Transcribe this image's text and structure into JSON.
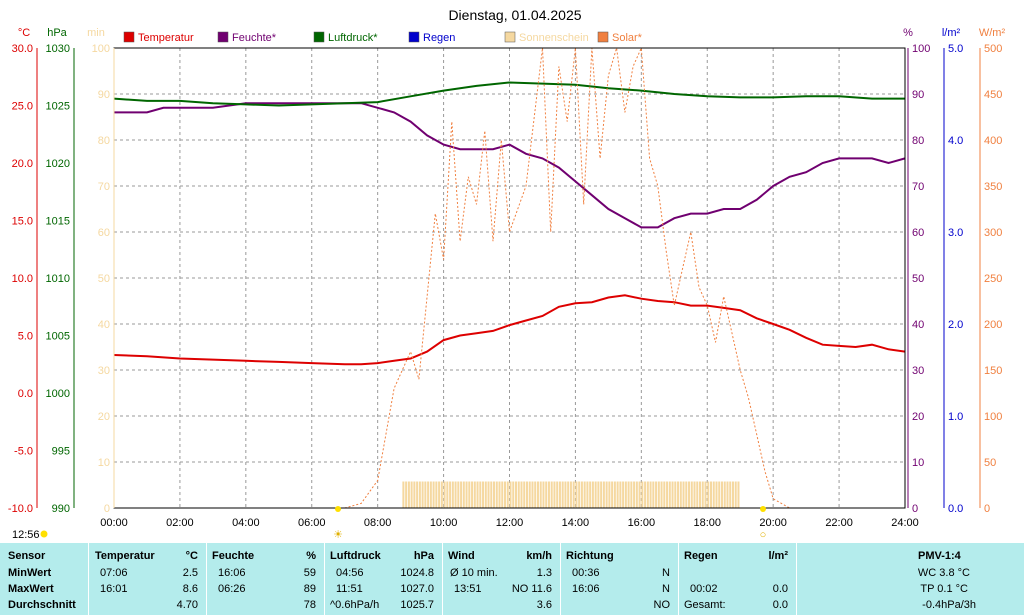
{
  "title": "Dienstag, 01.04.2025",
  "current_time": "12:56",
  "colors": {
    "temperature": "#dd0000",
    "humidity": "#700070",
    "pressure": "#006600",
    "rain": "#0000cc",
    "sunshine": "#f5d8a0",
    "solar": "#f08040",
    "grid": "#999999",
    "panel": "#b4ecec"
  },
  "chart_data": {
    "type": "line",
    "x_range": [
      "00:00",
      "24:00"
    ],
    "x_ticks": [
      "00:00",
      "02:00",
      "04:00",
      "06:00",
      "08:00",
      "10:00",
      "12:00",
      "14:00",
      "16:00",
      "18:00",
      "20:00",
      "22:00",
      "24:00"
    ],
    "legend": [
      "Temperatur",
      "Feuchte*",
      "Luftdruck*",
      "Regen",
      "Sonnenschein",
      "Solar*"
    ],
    "axes": {
      "temperature": {
        "unit": "°C",
        "range": [
          -10,
          30
        ],
        "ticks": [
          "30.0",
          "25.0",
          "20.0",
          "15.0",
          "10.0",
          "5.0",
          "0.0",
          "-5.0",
          "-10.0"
        ]
      },
      "pressure": {
        "unit": "hPa",
        "range": [
          990,
          1030
        ],
        "ticks": [
          "1030",
          "1025",
          "1020",
          "1015",
          "1010",
          "1005",
          "1000",
          "995",
          "990"
        ]
      },
      "sunshine": {
        "unit": "min",
        "range": [
          0,
          100
        ],
        "ticks": [
          "100",
          "90",
          "80",
          "70",
          "60",
          "50",
          "40",
          "30",
          "20",
          "10",
          "0"
        ]
      },
      "humidity": {
        "unit": "%",
        "range": [
          0,
          100
        ],
        "ticks": [
          "100",
          "90",
          "80",
          "70",
          "60",
          "50",
          "40",
          "30",
          "20",
          "10",
          "0"
        ]
      },
      "rain": {
        "unit": "l/m²",
        "range": [
          0,
          5
        ],
        "ticks": [
          "5.0",
          "4.0",
          "3.0",
          "2.0",
          "1.0",
          "0.0"
        ]
      },
      "solar": {
        "unit": "W/m²",
        "range": [
          0,
          500
        ],
        "ticks": [
          "500",
          "450",
          "400",
          "350",
          "300",
          "250",
          "200",
          "150",
          "100",
          "50",
          "0"
        ]
      }
    },
    "series": [
      {
        "name": "Temperatur",
        "axis": "temperature",
        "x": [
          0,
          1,
          2,
          3,
          4,
          5,
          6,
          7,
          7.5,
          8,
          8.5,
          9,
          9.5,
          10,
          10.5,
          11,
          11.5,
          12,
          12.5,
          13,
          13.5,
          14,
          14.5,
          15,
          15.5,
          16,
          16.5,
          17,
          17.5,
          18,
          18.5,
          19,
          19.5,
          20,
          20.5,
          21,
          21.5,
          22,
          22.5,
          23,
          23.5,
          24
        ],
        "y": [
          3.3,
          3.2,
          3.0,
          2.9,
          2.8,
          2.7,
          2.6,
          2.5,
          2.5,
          2.6,
          2.8,
          3.0,
          3.6,
          4.6,
          5.0,
          5.2,
          5.4,
          5.9,
          6.3,
          6.7,
          7.5,
          7.8,
          7.9,
          8.3,
          8.5,
          8.2,
          8.0,
          7.9,
          7.6,
          7.6,
          7.4,
          7.2,
          6.5,
          6.0,
          5.5,
          4.8,
          4.2,
          4.1,
          4.0,
          4.2,
          3.8,
          3.6
        ]
      },
      {
        "name": "Feuchte*",
        "axis": "humidity",
        "x": [
          0,
          1,
          1.5,
          2,
          3,
          4,
          5,
          6,
          7,
          7.5,
          8,
          8.5,
          9,
          9.5,
          10,
          10.5,
          11,
          11.5,
          12,
          12.5,
          13,
          13.5,
          14,
          14.5,
          15,
          15.5,
          16,
          16.5,
          17,
          17.5,
          18,
          18.5,
          19,
          19.5,
          20,
          20.5,
          21,
          21.5,
          22,
          22.5,
          23,
          23.5,
          24
        ],
        "y": [
          86,
          86,
          87,
          87,
          87,
          88,
          88,
          88,
          88,
          88,
          87,
          86,
          84,
          81,
          79,
          78,
          78,
          78,
          79,
          77,
          76,
          74,
          71,
          68,
          65,
          63,
          61,
          61,
          63,
          64,
          64,
          65,
          65,
          67,
          70,
          72,
          73,
          75,
          76,
          76,
          76,
          75,
          76
        ]
      },
      {
        "name": "Luftdruck*",
        "axis": "pressure",
        "x": [
          0,
          1,
          2,
          3,
          4,
          5,
          6,
          7,
          8,
          9,
          10,
          11,
          12,
          13,
          14,
          15,
          16,
          17,
          18,
          19,
          20,
          21,
          22,
          23,
          24
        ],
        "y": [
          1025.6,
          1025.4,
          1025.4,
          1025.2,
          1025.1,
          1025.0,
          1025.1,
          1025.2,
          1025.3,
          1025.8,
          1026.3,
          1026.7,
          1027.0,
          1026.9,
          1026.8,
          1026.5,
          1026.3,
          1026.0,
          1025.8,
          1025.7,
          1025.7,
          1025.8,
          1025.8,
          1025.6,
          1025.6
        ]
      },
      {
        "name": "Solar*",
        "axis": "solar",
        "x": [
          7,
          7.5,
          8,
          8.5,
          9,
          9.25,
          9.5,
          9.75,
          10,
          10.25,
          10.5,
          10.75,
          11,
          11.25,
          11.5,
          11.75,
          12,
          12.5,
          13,
          13.25,
          13.5,
          13.75,
          14,
          14.25,
          14.5,
          14.75,
          15,
          15.25,
          15.5,
          15.75,
          16,
          16.25,
          16.5,
          16.75,
          17,
          17.25,
          17.5,
          17.75,
          18,
          18.25,
          18.5,
          18.75,
          19,
          19.25,
          19.5,
          19.75,
          20,
          20.5
        ],
        "y": [
          0,
          5,
          30,
          130,
          170,
          140,
          230,
          320,
          270,
          420,
          290,
          360,
          330,
          410,
          290,
          400,
          300,
          350,
          500,
          300,
          480,
          420,
          500,
          330,
          500,
          380,
          470,
          500,
          430,
          480,
          500,
          380,
          350,
          280,
          220,
          260,
          300,
          240,
          220,
          180,
          230,
          190,
          150,
          120,
          80,
          40,
          10,
          0
        ]
      }
    ],
    "sunshine_bars": {
      "from": "08:45",
      "to": "19:00",
      "value_min": 2.5
    },
    "rain": "0.0"
  },
  "stats": {
    "rows": [
      "Sensor",
      "MinWert",
      "MaxWert",
      "Durchschnitt"
    ],
    "temperature": {
      "head": "Temperatur",
      "unit": "°C",
      "min_time": "07:06",
      "min": "2.5",
      "max_time": "16:01",
      "max": "8.6",
      "avg": "4.70"
    },
    "humidity": {
      "head": "Feuchte",
      "unit": "%",
      "min_time": "16:06",
      "min": "59",
      "max_time": "06:26",
      "max": "89",
      "avg": "78"
    },
    "pressure": {
      "head": "Luftdruck",
      "unit": "hPa",
      "min_time": "04:56",
      "min": "1024.8",
      "max_time": "11:51",
      "max": "1027.0",
      "trend": "^0.6hPa/h",
      "avg": "1025.7"
    },
    "wind": {
      "head": "Wind",
      "unit": "km/h",
      "min_label": "Ø 10 min.",
      "min": "1.3",
      "max_time": "13:51",
      "max": "NO 11.6",
      "avg": "3.6"
    },
    "direction": {
      "head": "Richtung",
      "min_time": "00:36",
      "min": "N",
      "max_time": "16:06",
      "max": "N",
      "avg": "NO"
    },
    "rain": {
      "head": "Regen",
      "unit": "l/m²",
      "max_time": "00:02",
      "max": "0.0",
      "total_label": "Gesamt:",
      "total": "0.0"
    },
    "pmv": {
      "head": "PMV-1:4",
      "wc": "WC 3.8 °C",
      "tp": "TP 0.1 °C",
      "trend": "-0.4hPa/3h"
    }
  }
}
